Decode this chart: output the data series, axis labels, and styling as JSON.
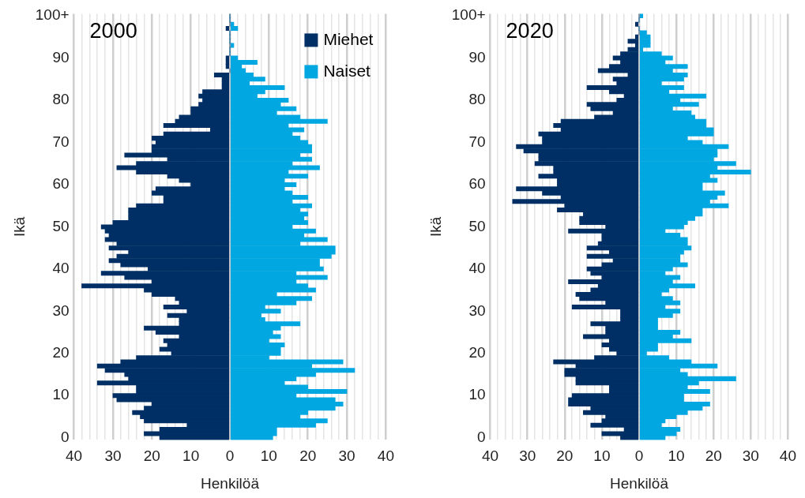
{
  "chart_data": [
    {
      "type": "bar",
      "title": "2000",
      "orientation": "horizontal",
      "stacked": true,
      "xlabel": "Henkilöä",
      "ylabel": "Ikä",
      "grid": "x",
      "legend": "top right",
      "categories": [
        "100+",
        null,
        null,
        null,
        null,
        null,
        null,
        null,
        null,
        null,
        "90",
        null,
        null,
        null,
        null,
        null,
        null,
        null,
        null,
        null,
        "80",
        null,
        null,
        null,
        null,
        null,
        null,
        null,
        null,
        null,
        "70",
        null,
        null,
        null,
        null,
        null,
        null,
        null,
        null,
        null,
        "60",
        null,
        null,
        null,
        null,
        null,
        null,
        null,
        null,
        null,
        "50",
        null,
        null,
        null,
        null,
        null,
        null,
        null,
        null,
        null,
        "40",
        null,
        null,
        null,
        null,
        null,
        null,
        null,
        null,
        null,
        "30",
        null,
        null,
        null,
        null,
        null,
        null,
        null,
        null,
        null,
        "20",
        null,
        null,
        null,
        null,
        null,
        null,
        null,
        null,
        null,
        "10",
        null,
        null,
        null,
        null,
        null,
        null,
        null,
        null,
        null,
        "0"
      ],
      "xlim": [
        -40,
        40
      ],
      "xticks": [
        {
          "value": -40,
          "label": "40"
        },
        {
          "value": -38,
          "label": null
        },
        {
          "value": -36,
          "label": null
        },
        {
          "value": -34,
          "label": null
        },
        {
          "value": -32,
          "label": null
        },
        {
          "value": -30,
          "label": "30"
        },
        {
          "value": -28,
          "label": null
        },
        {
          "value": -26,
          "label": null
        },
        {
          "value": -24,
          "label": null
        },
        {
          "value": -22,
          "label": null
        },
        {
          "value": -20,
          "label": "20"
        },
        {
          "value": -18,
          "label": null
        },
        {
          "value": -16,
          "label": null
        },
        {
          "value": -14,
          "label": null
        },
        {
          "value": -12,
          "label": null
        },
        {
          "value": -10,
          "label": "10"
        },
        {
          "value": -8,
          "label": null
        },
        {
          "value": -6,
          "label": null
        },
        {
          "value": -4,
          "label": null
        },
        {
          "value": -2,
          "label": null
        },
        0,
        {
          "value": 2,
          "label": null
        },
        {
          "value": 4,
          "label": null
        },
        {
          "value": 6,
          "label": null
        },
        {
          "value": 8,
          "label": null
        },
        10,
        {
          "value": 12,
          "label": null
        },
        {
          "value": 14,
          "label": null
        },
        {
          "value": 16,
          "label": null
        },
        {
          "value": 18,
          "label": null
        },
        20,
        {
          "value": 22,
          "label": null
        },
        {
          "value": 24,
          "label": null
        },
        {
          "value": 26,
          "label": null
        },
        {
          "value": 28,
          "label": null
        },
        30,
        {
          "value": 32,
          "label": null
        },
        {
          "value": 34,
          "label": null
        },
        {
          "value": 36,
          "label": null
        },
        {
          "value": 38,
          "label": null
        },
        40
      ],
      "series": [
        {
          "name": "Miehet",
          "color": "#002f65",
          "values": [
            0,
            0,
            0,
            -1,
            0,
            0,
            0,
            0,
            0,
            0,
            -1,
            -1,
            -1,
            0,
            -4,
            -2,
            -2,
            -2,
            -7,
            -8,
            -7,
            -8,
            -10,
            -10,
            -13,
            -14,
            -17,
            -5,
            -17,
            -20,
            -19,
            -20,
            -20,
            -27,
            -16,
            -24,
            -29,
            -24,
            -16,
            -13,
            -10,
            -19,
            -20,
            -17,
            -17,
            -24,
            -26,
            -26,
            -26,
            -30,
            -33,
            -32,
            -31,
            -32,
            -29,
            -31,
            -26,
            -29,
            -31,
            -28,
            -21,
            -33,
            -27,
            -20,
            -38,
            -22,
            -20,
            -14,
            -13,
            -17,
            -11,
            -16,
            -13,
            -13,
            -22,
            -19,
            -13,
            -17,
            -16,
            -18,
            -15,
            -24,
            -28,
            -34,
            -32,
            -27,
            -26,
            -34,
            -24,
            -24,
            -30,
            -29,
            -20,
            -22,
            -25,
            -23,
            -22,
            -11,
            -18,
            -22,
            -18
          ]
        },
        {
          "name": "Naiset",
          "color": "#00a7e1",
          "values": [
            0,
            0,
            1,
            2,
            0,
            0,
            0,
            1,
            0,
            0,
            2,
            7,
            3,
            4,
            6,
            9,
            5,
            14,
            9,
            7,
            15,
            13,
            17,
            12,
            18,
            25,
            15,
            19,
            16,
            18,
            20,
            21,
            21,
            18,
            21,
            16,
            23,
            15,
            20,
            14,
            17,
            14,
            16,
            20,
            16,
            21,
            18,
            20,
            19,
            20,
            16,
            22,
            19,
            25,
            18,
            27,
            27,
            26,
            23,
            23,
            24,
            17,
            25,
            17,
            20,
            22,
            12,
            21,
            17,
            9,
            13,
            8,
            9,
            18,
            13,
            11,
            13,
            10,
            14,
            13,
            13,
            10,
            29,
            21,
            32,
            22,
            17,
            14,
            20,
            30,
            17,
            27,
            29,
            27,
            20,
            18,
            25,
            22,
            12,
            12,
            11
          ]
        }
      ]
    },
    {
      "type": "bar",
      "title": "2020",
      "orientation": "horizontal",
      "stacked": true,
      "xlabel": "Henkilöä",
      "ylabel": "Ikä",
      "grid": "x",
      "categories": [
        "100+",
        null,
        null,
        null,
        null,
        null,
        null,
        null,
        null,
        null,
        "90",
        null,
        null,
        null,
        null,
        null,
        null,
        null,
        null,
        null,
        "80",
        null,
        null,
        null,
        null,
        null,
        null,
        null,
        null,
        null,
        "70",
        null,
        null,
        null,
        null,
        null,
        null,
        null,
        null,
        null,
        "60",
        null,
        null,
        null,
        null,
        null,
        null,
        null,
        null,
        null,
        "50",
        null,
        null,
        null,
        null,
        null,
        null,
        null,
        null,
        null,
        "40",
        null,
        null,
        null,
        null,
        null,
        null,
        null,
        null,
        null,
        "30",
        null,
        null,
        null,
        null,
        null,
        null,
        null,
        null,
        null,
        "20",
        null,
        null,
        null,
        null,
        null,
        null,
        null,
        null,
        null,
        "10",
        null,
        null,
        null,
        null,
        null,
        null,
        null,
        null,
        null,
        "0"
      ],
      "xlim": [
        -40,
        40
      ],
      "xticks": [
        {
          "value": -40,
          "label": "40"
        },
        {
          "value": -38,
          "label": null
        },
        {
          "value": -36,
          "label": null
        },
        {
          "value": -34,
          "label": null
        },
        {
          "value": -32,
          "label": null
        },
        {
          "value": -30,
          "label": "30"
        },
        {
          "value": -28,
          "label": null
        },
        {
          "value": -26,
          "label": null
        },
        {
          "value": -24,
          "label": null
        },
        {
          "value": -22,
          "label": null
        },
        {
          "value": -20,
          "label": "20"
        },
        {
          "value": -18,
          "label": null
        },
        {
          "value": -16,
          "label": null
        },
        {
          "value": -14,
          "label": null
        },
        {
          "value": -12,
          "label": null
        },
        {
          "value": -10,
          "label": "10"
        },
        {
          "value": -8,
          "label": null
        },
        {
          "value": -6,
          "label": null
        },
        {
          "value": -4,
          "label": null
        },
        {
          "value": -2,
          "label": null
        },
        0,
        {
          "value": 2,
          "label": null
        },
        {
          "value": 4,
          "label": null
        },
        {
          "value": 6,
          "label": null
        },
        {
          "value": 8,
          "label": null
        },
        10,
        {
          "value": 12,
          "label": null
        },
        {
          "value": 14,
          "label": null
        },
        {
          "value": 16,
          "label": null
        },
        {
          "value": 18,
          "label": null
        },
        20,
        {
          "value": 22,
          "label": null
        },
        {
          "value": 24,
          "label": null
        },
        {
          "value": 26,
          "label": null
        },
        {
          "value": 28,
          "label": null
        },
        30,
        {
          "value": 32,
          "label": null
        },
        {
          "value": 34,
          "label": null
        },
        {
          "value": 36,
          "label": null
        },
        {
          "value": 38,
          "label": null
        },
        40
      ],
      "series": [
        {
          "color": "#002f65",
          "values": [
            0,
            0,
            -1,
            0,
            0,
            -1,
            -3,
            -1,
            -3,
            -5,
            -7,
            -5,
            -8,
            -11,
            -3,
            -7,
            -6,
            -14,
            -8,
            -4,
            -6,
            -14,
            -13,
            -7,
            -12,
            -21,
            -23,
            -21,
            -27,
            -26,
            -26,
            -33,
            -31,
            -27,
            -27,
            -28,
            -23,
            -23,
            -27,
            -22,
            -22,
            -33,
            -26,
            -21,
            -34,
            -20,
            -22,
            -15,
            -16,
            -16,
            -9,
            -19,
            -10,
            -10,
            -11,
            -14,
            -8,
            -14,
            -7,
            -10,
            -14,
            -13,
            -10,
            -19,
            -11,
            -13,
            -17,
            -16,
            -9,
            -18,
            -5,
            -5,
            -5,
            -13,
            -9,
            -9,
            -15,
            -8,
            -10,
            -8,
            -6,
            -12,
            -23,
            -17,
            -20,
            -20,
            -17,
            -17,
            -8,
            -8,
            -18,
            -19,
            -19,
            -13,
            -15,
            -9,
            -10,
            -13,
            -4,
            -10,
            -5
          ]
        },
        {
          "color": "#00a7e1",
          "values": [
            1,
            0,
            null,
            0,
            2,
            3,
            3,
            3,
            1,
            6,
            9,
            7,
            13,
            9,
            13,
            12,
            6,
            12,
            8,
            18,
            11,
            16,
            9,
            14,
            15,
            18,
            18,
            20,
            20,
            13,
            17,
            24,
            21,
            21,
            20,
            26,
            21,
            30,
            19,
            21,
            17,
            17,
            23,
            21,
            19,
            24,
            17,
            17,
            15,
            13,
            12,
            7,
            11,
            13,
            13,
            14,
            12,
            11,
            11,
            13,
            9,
            7,
            11,
            9,
            15,
            8,
            6,
            9,
            11,
            7,
            11,
            9,
            5,
            5,
            5,
            11,
            9,
            14,
            5,
            5,
            2,
            8,
            14,
            21,
            11,
            13,
            26,
            16,
            13,
            19,
            12,
            12,
            19,
            17,
            13,
            10,
            7,
            6,
            11,
            10,
            7
          ]
        }
      ]
    }
  ]
}
